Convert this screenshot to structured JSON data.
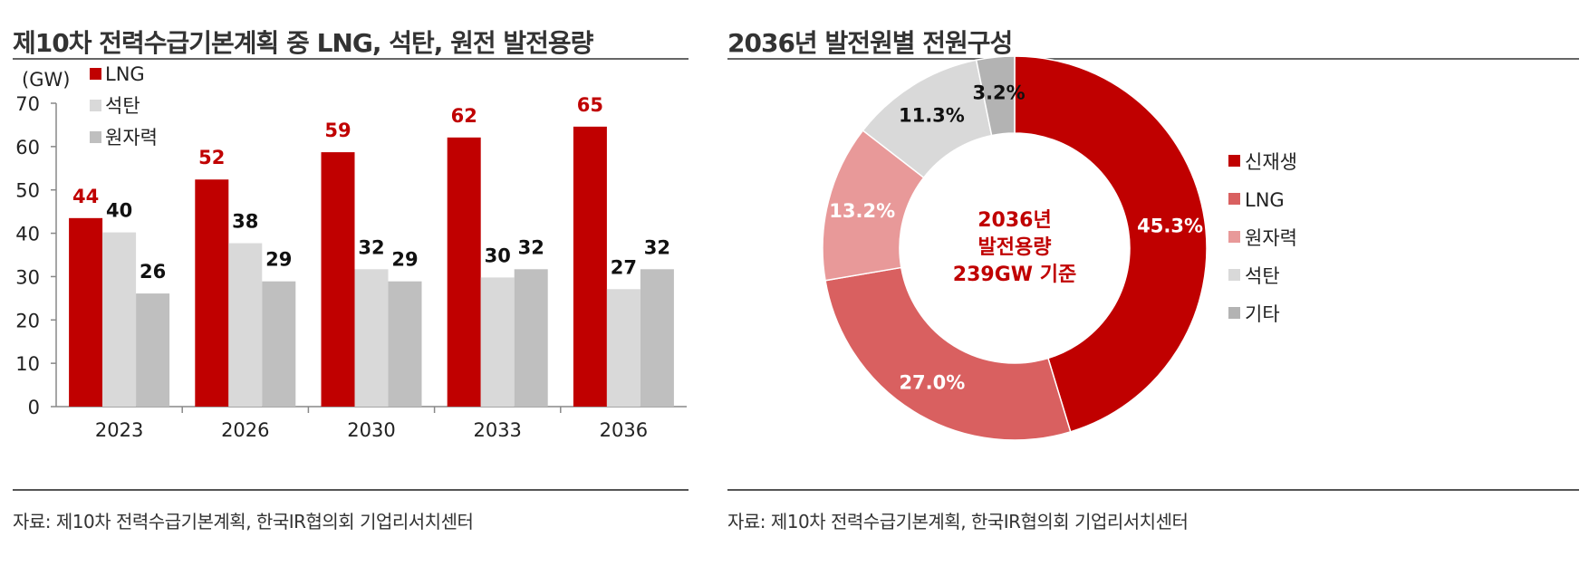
{
  "left": {
    "title": "제10차 전력수급기본계획 중 LNG, 석탄, 원전 발전용량",
    "source": "자료: 제10차 전력수급기본계획, 한국IR협의회 기업리서치센터"
  },
  "right": {
    "title": "2036년 발전원별 전원구성",
    "source": "자료: 제10차 전력수급기본계획, 한국IR협의회 기업리서치센터"
  },
  "chart_data": [
    {
      "type": "bar",
      "title": "제10차 전력수급기본계획 중 LNG, 석탄, 원전 발전용량",
      "ylabel": "(GW)",
      "ylim": [
        0,
        70
      ],
      "yticks": [
        0,
        10,
        20,
        30,
        40,
        50,
        60,
        70
      ],
      "categories": [
        "2023",
        "2026",
        "2030",
        "2033",
        "2036"
      ],
      "series": [
        {
          "name": "LNG",
          "values": [
            43.5,
            52.4,
            58.7,
            62.1,
            64.6
          ],
          "labels": [
            "44",
            "52",
            "59",
            "62",
            "65"
          ],
          "color": "#c00000",
          "label_color": "#c00000"
        },
        {
          "name": "석탄",
          "values": [
            40.2,
            37.7,
            31.7,
            29.8,
            27.1
          ],
          "labels": [
            "40",
            "38",
            "32",
            "30",
            "27"
          ],
          "color": "#d9d9d9",
          "label_color": "#111111"
        },
        {
          "name": "원자력",
          "values": [
            26.1,
            28.9,
            28.9,
            31.7,
            31.7
          ],
          "labels": [
            "26",
            "29",
            "29",
            "32",
            "32"
          ],
          "color": "#bfbfbf",
          "label_color": "#111111"
        }
      ],
      "legend_position": "top-left"
    },
    {
      "type": "pie",
      "subtype": "donut",
      "title": "2036년 발전원별 전원구성",
      "center_text": [
        "2036년",
        "발전용량",
        "239GW 기준"
      ],
      "center_color": "#c00000",
      "slices": [
        {
          "name": "신재생",
          "value": 45.3,
          "label": "45.3%",
          "color": "#c00000",
          "label_color": "#ffffff"
        },
        {
          "name": "LNG",
          "value": 27.0,
          "label": "27.0%",
          "color": "#d96060",
          "label_color": "#ffffff"
        },
        {
          "name": "원자력",
          "value": 13.2,
          "label": "13.2%",
          "color": "#e89999",
          "label_color": "#ffffff"
        },
        {
          "name": "석탄",
          "value": 11.3,
          "label": "11.3%",
          "color": "#d9d9d9",
          "label_color": "#111111"
        },
        {
          "name": "기타",
          "value": 3.2,
          "label": "3.2%",
          "color": "#b3b3b3",
          "label_color": "#111111"
        }
      ],
      "legend_position": "right"
    }
  ]
}
